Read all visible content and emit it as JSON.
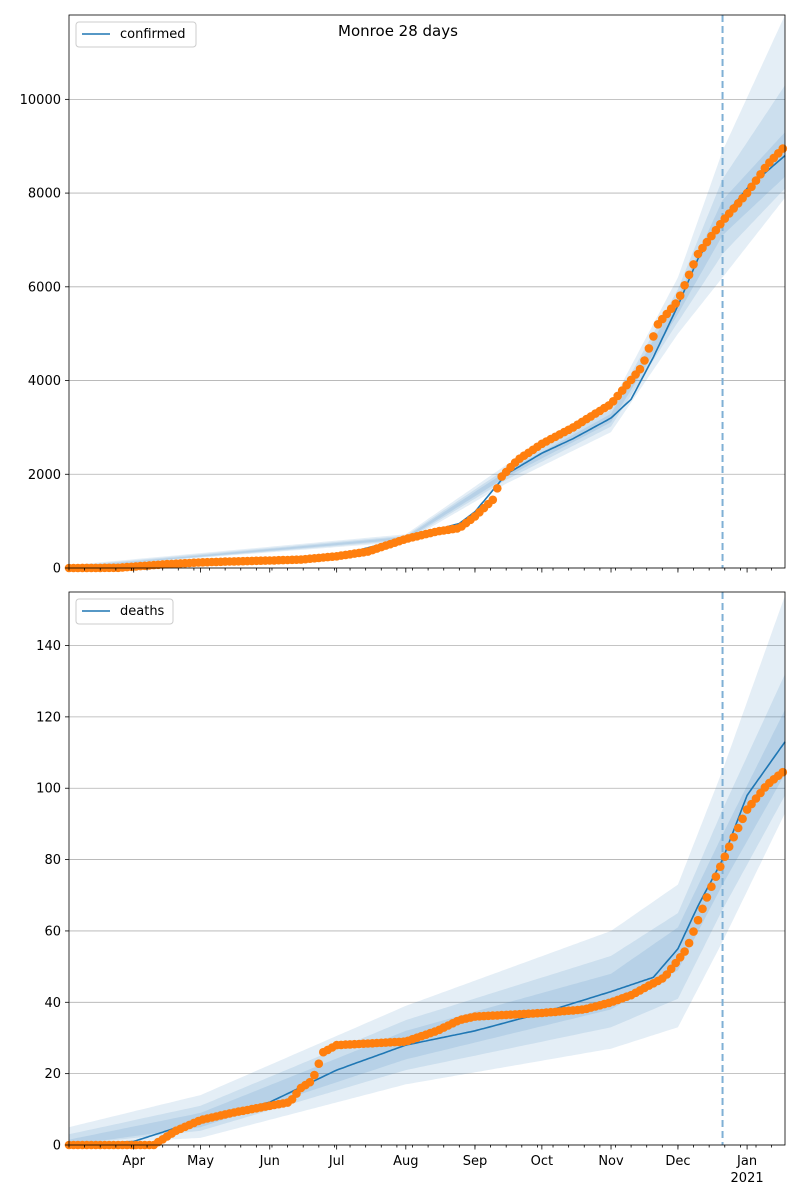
{
  "figure_title": "Monroe 28 days",
  "colors": {
    "model_line": "#1f77b4",
    "observed_points": "#ff7f0e",
    "band": "#1f77b4",
    "vline": "#7fb0d5"
  },
  "chart_data": [
    {
      "type": "line",
      "legend": {
        "label": "confirmed",
        "placement": "upper-left"
      },
      "ylim": [
        0,
        11800
      ],
      "yticks": [
        0,
        2000,
        4000,
        6000,
        8000,
        10000
      ],
      "xlim": [
        "2020-03-03",
        "2021-01-18"
      ],
      "grid": "y",
      "forecast_start": "2020-12-21",
      "x_tick_labels": [
        "Apr",
        "May",
        "Jun",
        "Jul",
        "Aug",
        "Sep",
        "Oct",
        "Nov",
        "Dec",
        "Jan\n2021"
      ],
      "model": [
        [
          "2020-03-03",
          0
        ],
        [
          "2020-04-01",
          40
        ],
        [
          "2020-05-01",
          110
        ],
        [
          "2020-06-01",
          160
        ],
        [
          "2020-07-01",
          260
        ],
        [
          "2020-08-01",
          640
        ],
        [
          "2020-08-25",
          950
        ],
        [
          "2020-09-01",
          1200
        ],
        [
          "2020-09-15",
          2000
        ],
        [
          "2020-10-01",
          2450
        ],
        [
          "2020-10-15",
          2760
        ],
        [
          "2020-11-01",
          3200
        ],
        [
          "2020-11-10",
          3600
        ],
        [
          "2020-11-20",
          4500
        ],
        [
          "2020-12-01",
          5600
        ],
        [
          "2020-12-10",
          6600
        ],
        [
          "2020-12-21",
          7450
        ],
        [
          "2021-01-01",
          8100
        ],
        [
          "2021-01-18",
          8800
        ]
      ],
      "bands": [
        {
          "lower": [
            [
              "2020-03-03",
              0
            ],
            [
              "2020-08-01",
              560
            ],
            [
              "2020-09-15",
              1800
            ],
            [
              "2020-11-01",
              2900
            ],
            [
              "2020-12-01",
              5000
            ],
            [
              "2020-12-21",
              6200
            ],
            [
              "2021-01-18",
              7900
            ]
          ],
          "upper": [
            [
              "2020-03-03",
              60
            ],
            [
              "2020-08-01",
              720
            ],
            [
              "2020-09-15",
              2200
            ],
            [
              "2020-11-01",
              3500
            ],
            [
              "2020-12-01",
              6200
            ],
            [
              "2020-12-21",
              8900
            ],
            [
              "2021-01-18",
              11800
            ]
          ]
        },
        {
          "lower": [
            [
              "2020-03-03",
              0
            ],
            [
              "2020-08-01",
              590
            ],
            [
              "2020-09-15",
              1880
            ],
            [
              "2020-11-01",
              3020
            ],
            [
              "2020-12-01",
              5250
            ],
            [
              "2020-12-21",
              6700
            ],
            [
              "2021-01-18",
              8100
            ]
          ],
          "upper": [
            [
              "2020-03-03",
              40
            ],
            [
              "2020-08-01",
              690
            ],
            [
              "2020-09-15",
              2120
            ],
            [
              "2020-11-01",
              3380
            ],
            [
              "2020-12-01",
              5950
            ],
            [
              "2020-12-21",
              8300
            ],
            [
              "2021-01-18",
              10300
            ]
          ]
        },
        {
          "lower": [
            [
              "2020-03-03",
              0
            ],
            [
              "2020-08-01",
              615
            ],
            [
              "2020-09-15",
              1940
            ],
            [
              "2020-11-01",
              3110
            ],
            [
              "2020-12-01",
              5420
            ],
            [
              "2020-12-21",
              7100
            ],
            [
              "2021-01-18",
              8350
            ]
          ],
          "upper": [
            [
              "2020-03-03",
              20
            ],
            [
              "2020-08-01",
              665
            ],
            [
              "2020-09-15",
              2060
            ],
            [
              "2020-11-01",
              3290
            ],
            [
              "2020-12-01",
              5780
            ],
            [
              "2020-12-21",
              7850
            ],
            [
              "2021-01-18",
              9300
            ]
          ]
        }
      ],
      "observed": [
        [
          "2020-03-03",
          0
        ],
        [
          "2020-03-25",
          5
        ],
        [
          "2020-04-01",
          30
        ],
        [
          "2020-04-15",
          80
        ],
        [
          "2020-05-01",
          120
        ],
        [
          "2020-05-15",
          140
        ],
        [
          "2020-06-01",
          160
        ],
        [
          "2020-06-15",
          180
        ],
        [
          "2020-07-01",
          250
        ],
        [
          "2020-07-15",
          350
        ],
        [
          "2020-08-01",
          620
        ],
        [
          "2020-08-15",
          780
        ],
        [
          "2020-08-25",
          850
        ],
        [
          "2020-09-01",
          1100
        ],
        [
          "2020-09-10",
          1500
        ],
        [
          "2020-09-12",
          1900
        ],
        [
          "2020-09-20",
          2300
        ],
        [
          "2020-10-01",
          2650
        ],
        [
          "2020-10-15",
          3000
        ],
        [
          "2020-11-01",
          3500
        ],
        [
          "2020-11-15",
          4300
        ],
        [
          "2020-11-22",
          5200
        ],
        [
          "2020-12-01",
          5700
        ],
        [
          "2020-12-10",
          6700
        ],
        [
          "2020-12-21",
          7400
        ],
        [
          "2021-01-01",
          8000
        ],
        [
          "2021-01-10",
          8600
        ],
        [
          "2021-01-18",
          9000
        ]
      ]
    },
    {
      "type": "line",
      "legend": {
        "label": "deaths",
        "placement": "upper-left"
      },
      "ylim": [
        0,
        155
      ],
      "yticks": [
        0,
        20,
        40,
        60,
        80,
        100,
        120,
        140
      ],
      "xlim": [
        "2020-03-03",
        "2021-01-18"
      ],
      "grid": "y",
      "forecast_start": "2020-12-21",
      "x_tick_labels": [
        "Apr",
        "May",
        "Jun",
        "Jul",
        "Aug",
        "Sep",
        "Oct",
        "Nov",
        "Dec",
        "Jan\n2021"
      ],
      "model": [
        [
          "2020-03-03",
          0
        ],
        [
          "2020-04-01",
          1
        ],
        [
          "2020-05-01",
          7
        ],
        [
          "2020-06-01",
          12
        ],
        [
          "2020-07-01",
          21
        ],
        [
          "2020-08-01",
          28
        ],
        [
          "2020-09-01",
          32
        ],
        [
          "2020-10-01",
          37
        ],
        [
          "2020-11-01",
          43
        ],
        [
          "2020-11-20",
          47
        ],
        [
          "2020-12-01",
          55
        ],
        [
          "2020-12-10",
          67
        ],
        [
          "2020-12-21",
          80
        ],
        [
          "2021-01-01",
          98
        ],
        [
          "2021-01-18",
          113
        ]
      ],
      "bands": [
        {
          "lower": [
            [
              "2020-03-03",
              0
            ],
            [
              "2020-05-01",
              2
            ],
            [
              "2020-08-01",
              17
            ],
            [
              "2020-11-01",
              27
            ],
            [
              "2020-12-01",
              33
            ],
            [
              "2020-12-21",
              57
            ],
            [
              "2021-01-18",
              93
            ]
          ],
          "upper": [
            [
              "2020-03-03",
              5
            ],
            [
              "2020-05-01",
              14
            ],
            [
              "2020-08-01",
              39
            ],
            [
              "2020-11-01",
              60
            ],
            [
              "2020-12-01",
              73
            ],
            [
              "2020-12-21",
              105
            ],
            [
              "2021-01-18",
              154
            ]
          ]
        },
        {
          "lower": [
            [
              "2020-03-03",
              0
            ],
            [
              "2020-05-01",
              4
            ],
            [
              "2020-08-01",
              21
            ],
            [
              "2020-11-01",
              33
            ],
            [
              "2020-12-01",
              41
            ],
            [
              "2020-12-21",
              66
            ],
            [
              "2021-01-18",
              98
            ]
          ],
          "upper": [
            [
              "2020-03-03",
              3
            ],
            [
              "2020-05-01",
              11
            ],
            [
              "2020-08-01",
              35
            ],
            [
              "2020-11-01",
              53
            ],
            [
              "2020-12-01",
              65
            ],
            [
              "2020-12-21",
              94
            ],
            [
              "2021-01-18",
              132
            ]
          ]
        },
        {
          "lower": [
            [
              "2020-03-03",
              0
            ],
            [
              "2020-05-01",
              5
            ],
            [
              "2020-08-01",
              24
            ],
            [
              "2020-11-01",
              38
            ],
            [
              "2020-12-01",
              49
            ],
            [
              "2020-12-21",
              73
            ],
            [
              "2021-01-18",
              104
            ]
          ],
          "upper": [
            [
              "2020-03-03",
              1.5
            ],
            [
              "2020-05-01",
              9
            ],
            [
              "2020-08-01",
              32
            ],
            [
              "2020-11-01",
              48
            ],
            [
              "2020-12-01",
              61
            ],
            [
              "2020-12-21",
              87
            ],
            [
              "2021-01-18",
              122
            ]
          ]
        }
      ],
      "observed": [
        [
          "2020-03-03",
          0
        ],
        [
          "2020-04-10",
          0
        ],
        [
          "2020-04-15",
          2
        ],
        [
          "2020-04-20",
          4
        ],
        [
          "2020-05-01",
          7
        ],
        [
          "2020-05-15",
          9
        ],
        [
          "2020-06-01",
          11
        ],
        [
          "2020-06-10",
          12
        ],
        [
          "2020-06-15",
          16
        ],
        [
          "2020-06-20",
          18
        ],
        [
          "2020-06-25",
          26
        ],
        [
          "2020-07-01",
          28
        ],
        [
          "2020-08-01",
          29
        ],
        [
          "2020-08-15",
          32
        ],
        [
          "2020-08-25",
          35
        ],
        [
          "2020-09-01",
          36
        ],
        [
          "2020-10-01",
          37
        ],
        [
          "2020-10-20",
          38
        ],
        [
          "2020-11-01",
          40
        ],
        [
          "2020-11-10",
          42
        ],
        [
          "2020-11-25",
          47
        ],
        [
          "2020-12-05",
          55
        ],
        [
          "2020-12-15",
          71
        ],
        [
          "2020-12-20",
          78
        ],
        [
          "2020-12-25",
          85
        ],
        [
          "2021-01-01",
          94
        ],
        [
          "2021-01-10",
          101
        ],
        [
          "2021-01-18",
          105
        ]
      ]
    }
  ]
}
